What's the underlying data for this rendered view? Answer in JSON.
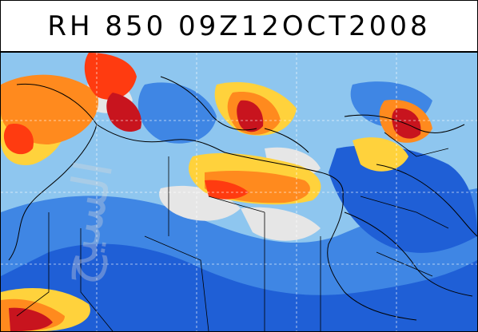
{
  "title": "RH 850 09Z12OCT2008",
  "map": {
    "palette": {
      "very_dry": "#1f5fd6",
      "dry": "#3f86e4",
      "mid_dry": "#8ec6ef",
      "neutral": "#e6e6e6",
      "moist": "#ffd23c",
      "wet": "#ff8a1e",
      "very_wet": "#ff3b10",
      "saturated": "#c8141e",
      "coast": "#000000"
    },
    "watermark_text": "السيح"
  }
}
